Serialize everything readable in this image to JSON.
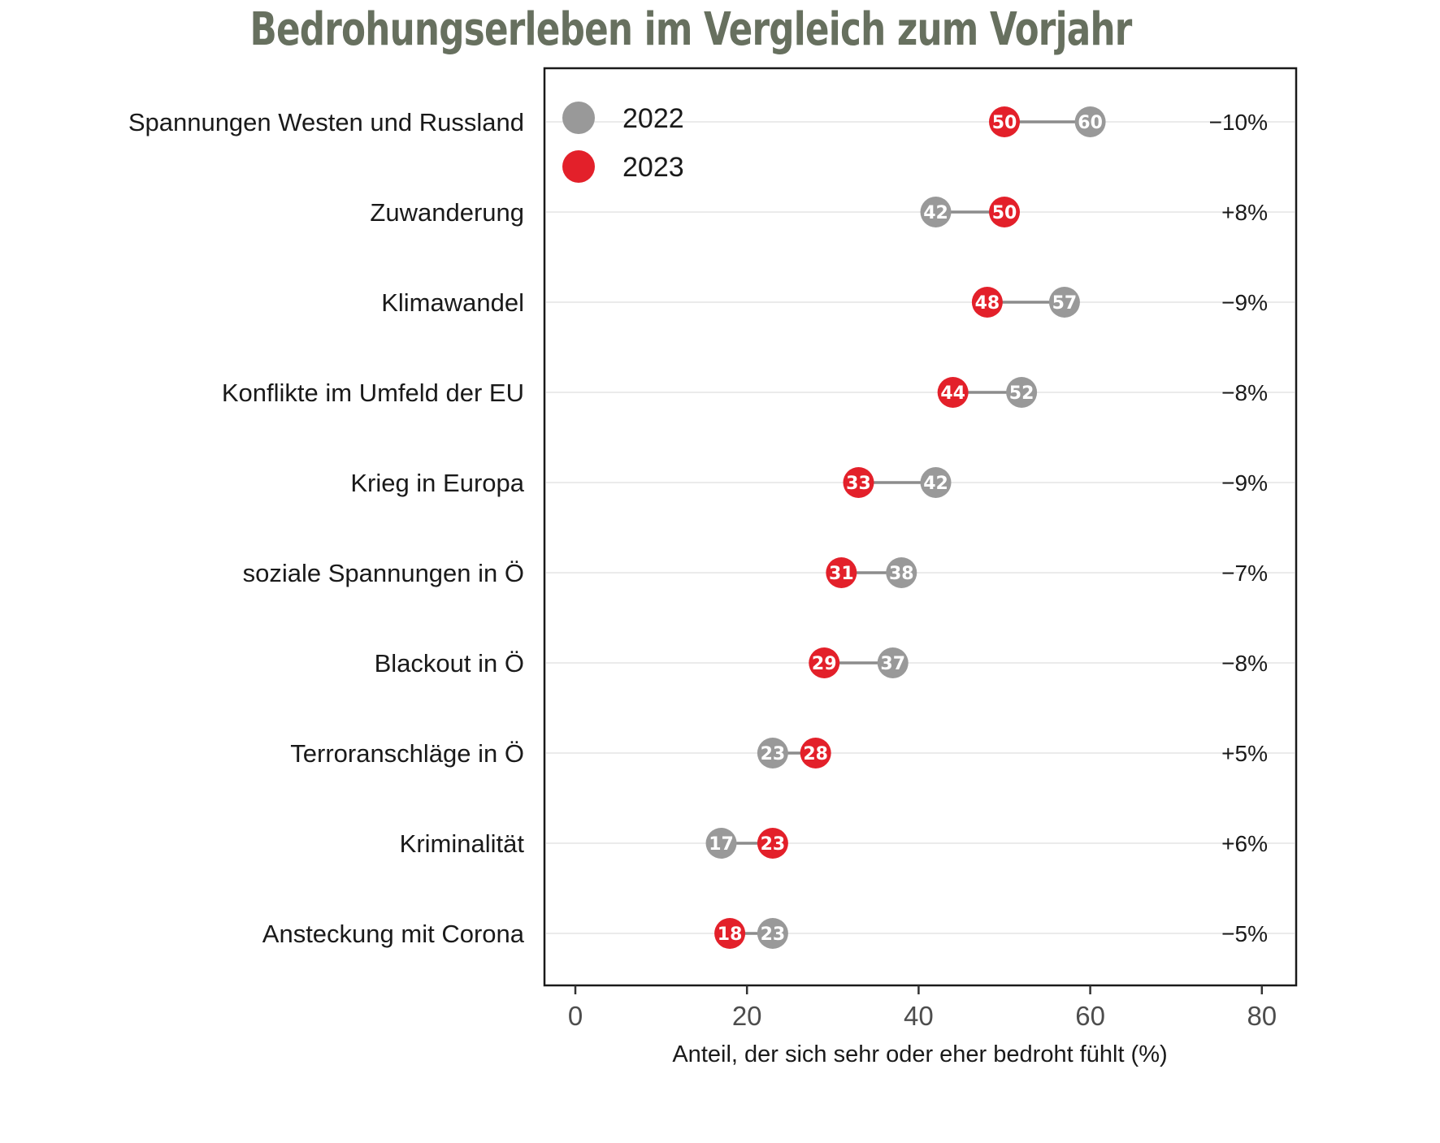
{
  "chart_data": {
    "type": "dumbbell",
    "title": "Bedrohungserleben im Vergleich zum Vorjahr",
    "xlabel": "Anteil, der sich sehr oder eher bedroht fühlt (%)",
    "ylabel": "",
    "xlim": [
      0,
      80
    ],
    "xticks": [
      0,
      20,
      40,
      60,
      80
    ],
    "grid": "horizontal",
    "legend_position": "top-left",
    "categories": [
      "Spannungen Westen und Russland",
      "Zuwanderung",
      "Klimawandel",
      "Konflikte im Umfeld der EU",
      "Krieg in Europa",
      "soziale Spannungen in Ö",
      "Blackout in Ö",
      "Terroranschläge in Ö",
      "Kriminalität",
      "Ansteckung mit Corona"
    ],
    "series": [
      {
        "name": "2022",
        "color": "#999999",
        "values": [
          60,
          42,
          57,
          52,
          42,
          38,
          37,
          23,
          17,
          23
        ]
      },
      {
        "name": "2023",
        "color": "#e3202a",
        "values": [
          50,
          50,
          48,
          44,
          33,
          31,
          29,
          28,
          23,
          18
        ]
      }
    ],
    "differences": [
      "−10%",
      "+8%",
      "−9%",
      "−8%",
      "−9%",
      "−7%",
      "−8%",
      "+5%",
      "+6%",
      "−5%"
    ]
  }
}
